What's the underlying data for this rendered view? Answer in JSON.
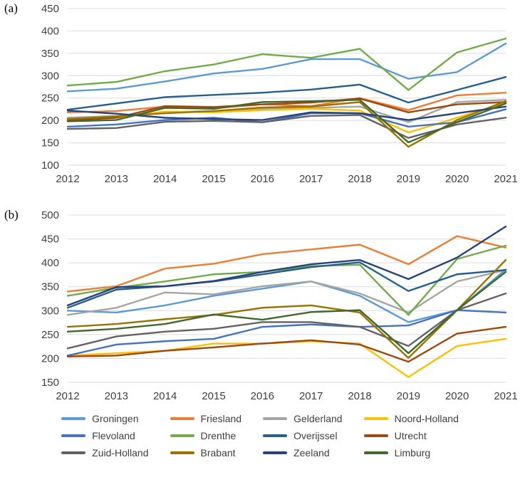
{
  "chart_data": [
    {
      "type": "line",
      "label": "(a)",
      "title": "",
      "xlabel": "",
      "ylabel": "",
      "ylim": [
        100,
        450
      ],
      "yticks": [
        100,
        150,
        200,
        250,
        300,
        350,
        400,
        450
      ],
      "grid": true,
      "x": [
        "2012",
        "2013",
        "2014",
        "2015",
        "2016",
        "2017",
        "2018",
        "2019",
        "2020",
        "2021"
      ],
      "series": [
        {
          "name": "Groningen",
          "color": "#5B9BD5",
          "values": [
            265,
            271,
            287,
            305,
            315,
            337,
            337,
            293,
            308,
            372
          ]
        },
        {
          "name": "Friesland",
          "color": "#ED7D31",
          "values": [
            218,
            221,
            231,
            227,
            236,
            232,
            250,
            223,
            256,
            262
          ]
        },
        {
          "name": "Gelderland",
          "color": "#A5A5A5",
          "values": [
            206,
            210,
            218,
            221,
            226,
            228,
            231,
            196,
            241,
            246
          ]
        },
        {
          "name": "Noord-Holland",
          "color": "#FFC000",
          "values": [
            201,
            206,
            220,
            218,
            223,
            226,
            222,
            173,
            206,
            240
          ]
        },
        {
          "name": "Flevoland",
          "color": "#4472C4",
          "values": [
            186,
            191,
            201,
            206,
            196,
            216,
            216,
            186,
            196,
            225
          ]
        },
        {
          "name": "Drenthe",
          "color": "#70AD47",
          "values": [
            278,
            286,
            310,
            325,
            348,
            340,
            360,
            268,
            352,
            383
          ]
        },
        {
          "name": "Overijssel",
          "color": "#255E91",
          "values": [
            224,
            238,
            252,
            257,
            262,
            269,
            280,
            240,
            268,
            297
          ]
        },
        {
          "name": "Utrecht",
          "color": "#9E480E",
          "values": [
            200,
            206,
            232,
            230,
            236,
            240,
            249,
            218,
            236,
            241
          ]
        },
        {
          "name": "Zuid-Holland",
          "color": "#636363",
          "values": [
            181,
            183,
            197,
            199,
            196,
            210,
            212,
            161,
            191,
            206
          ]
        },
        {
          "name": "Brabant",
          "color": "#997300",
          "values": [
            203,
            209,
            216,
            221,
            229,
            231,
            241,
            141,
            201,
            243
          ]
        },
        {
          "name": "Zeeland",
          "color": "#264478",
          "values": [
            222,
            215,
            206,
            203,
            201,
            218,
            216,
            201,
            216,
            231
          ]
        },
        {
          "name": "Limburg",
          "color": "#43682B",
          "values": [
            198,
            201,
            228,
            226,
            241,
            243,
            246,
            151,
            196,
            238
          ]
        }
      ]
    },
    {
      "type": "line",
      "label": "(b)",
      "title": "",
      "xlabel": "",
      "ylabel": "",
      "ylim": [
        150,
        500
      ],
      "yticks": [
        150,
        200,
        250,
        300,
        350,
        400,
        450,
        500
      ],
      "grid": true,
      "x": [
        "2012",
        "2013",
        "2014",
        "2015",
        "2016",
        "2017",
        "2018",
        "2019",
        "2020",
        "2021"
      ],
      "series": [
        {
          "name": "Groningen",
          "color": "#5B9BD5",
          "values": [
            300,
            296,
            311,
            331,
            346,
            361,
            331,
            276,
            301,
            386
          ]
        },
        {
          "name": "Friesland",
          "color": "#ED7D31",
          "values": [
            340,
            351,
            388,
            398,
            418,
            428,
            438,
            397,
            456,
            432
          ]
        },
        {
          "name": "Gelderland",
          "color": "#A5A5A5",
          "values": [
            291,
            306,
            338,
            334,
            351,
            361,
            336,
            296,
            361,
            385
          ]
        },
        {
          "name": "Noord-Holland",
          "color": "#FFC000",
          "values": [
            206,
            211,
            216,
            231,
            231,
            236,
            231,
            161,
            226,
            241
          ]
        },
        {
          "name": "Flevoland",
          "color": "#4472C4",
          "values": [
            206,
            229,
            236,
            241,
            266,
            271,
            266,
            269,
            301,
            296
          ]
        },
        {
          "name": "Drenthe",
          "color": "#70AD47",
          "values": [
            331,
            348,
            361,
            376,
            381,
            393,
            396,
            291,
            408,
            436
          ]
        },
        {
          "name": "Overijssel",
          "color": "#255E91",
          "values": [
            306,
            344,
            351,
            361,
            376,
            391,
            401,
            341,
            376,
            385
          ]
        },
        {
          "name": "Utrecht",
          "color": "#9E480E",
          "values": [
            204,
            206,
            216,
            223,
            231,
            238,
            229,
            193,
            252,
            266
          ]
        },
        {
          "name": "Zuid-Holland",
          "color": "#636363",
          "values": [
            221,
            246,
            256,
            262,
            276,
            276,
            266,
            226,
            301,
            336
          ]
        },
        {
          "name": "Brabant",
          "color": "#997300",
          "values": [
            266,
            272,
            282,
            291,
            306,
            311,
            296,
            201,
            301,
            406
          ]
        },
        {
          "name": "Zeeland",
          "color": "#264478",
          "values": [
            311,
            349,
            351,
            362,
            381,
            397,
            406,
            366,
            411,
            476
          ]
        },
        {
          "name": "Limburg",
          "color": "#43682B",
          "values": [
            256,
            262,
            272,
            292,
            281,
            297,
            301,
            211,
            301,
            381
          ]
        }
      ]
    }
  ],
  "legend": [
    {
      "name": "Groningen",
      "color": "#5B9BD5"
    },
    {
      "name": "Friesland",
      "color": "#ED7D31"
    },
    {
      "name": "Gelderland",
      "color": "#A5A5A5"
    },
    {
      "name": "Noord-Holland",
      "color": "#FFC000"
    },
    {
      "name": "Flevoland",
      "color": "#4472C4"
    },
    {
      "name": "Drenthe",
      "color": "#70AD47"
    },
    {
      "name": "Overijssel",
      "color": "#255E91"
    },
    {
      "name": "Utrecht",
      "color": "#9E480E"
    },
    {
      "name": "Zuid-Holland",
      "color": "#636363"
    },
    {
      "name": "Brabant",
      "color": "#997300"
    },
    {
      "name": "Zeeland",
      "color": "#264478"
    },
    {
      "name": "Limburg",
      "color": "#43682B"
    }
  ]
}
